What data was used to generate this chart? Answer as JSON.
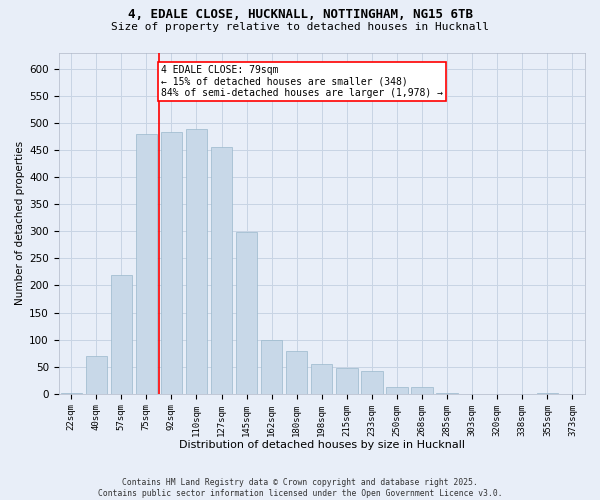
{
  "title1": "4, EDALE CLOSE, HUCKNALL, NOTTINGHAM, NG15 6TB",
  "title2": "Size of property relative to detached houses in Hucknall",
  "xlabel": "Distribution of detached houses by size in Hucknall",
  "ylabel": "Number of detached properties",
  "categories": [
    "22sqm",
    "40sqm",
    "57sqm",
    "75sqm",
    "92sqm",
    "110sqm",
    "127sqm",
    "145sqm",
    "162sqm",
    "180sqm",
    "198sqm",
    "215sqm",
    "233sqm",
    "250sqm",
    "268sqm",
    "285sqm",
    "303sqm",
    "320sqm",
    "338sqm",
    "355sqm",
    "373sqm"
  ],
  "values": [
    2,
    70,
    220,
    480,
    483,
    488,
    455,
    298,
    100,
    79,
    55,
    47,
    42,
    12,
    12,
    2,
    0,
    0,
    0,
    2,
    0
  ],
  "bar_color": "#c8d8e8",
  "bar_edge_color": "#9ab8cc",
  "grid_color": "#c8d4e4",
  "background_color": "#e8eef8",
  "vline_color": "red",
  "vline_index": 3.5,
  "annotation_text": "4 EDALE CLOSE: 79sqm\n← 15% of detached houses are smaller (348)\n84% of semi-detached houses are larger (1,978) →",
  "annotation_box_color": "white",
  "annotation_box_edge": "red",
  "footer": "Contains HM Land Registry data © Crown copyright and database right 2025.\nContains public sector information licensed under the Open Government Licence v3.0.",
  "ylim": [
    0,
    630
  ],
  "yticks": [
    0,
    50,
    100,
    150,
    200,
    250,
    300,
    350,
    400,
    450,
    500,
    550,
    600
  ]
}
